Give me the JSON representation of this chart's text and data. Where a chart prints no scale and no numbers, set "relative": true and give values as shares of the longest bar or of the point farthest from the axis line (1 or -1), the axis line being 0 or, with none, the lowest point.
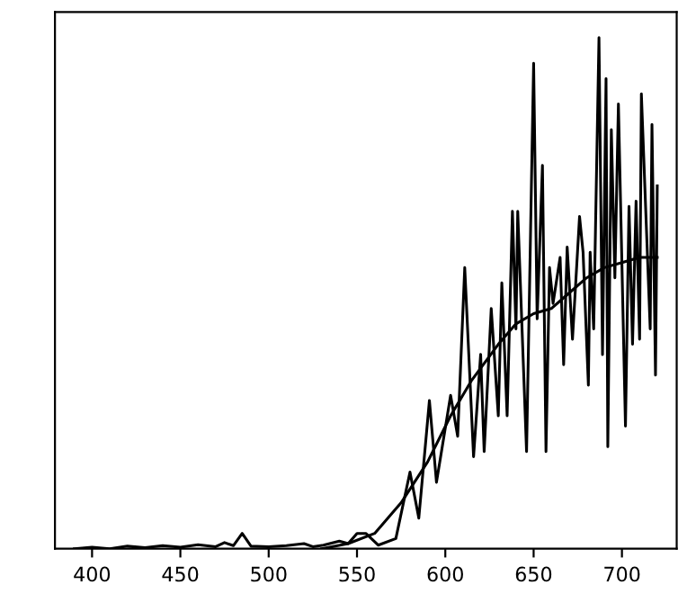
{
  "chart_data": {
    "type": "line",
    "relative": true,
    "xlim": [
      379,
      731
    ],
    "xticks": [
      400,
      450,
      500,
      550,
      600,
      650,
      700
    ],
    "grid": false,
    "series": [
      {
        "color": "#000000",
        "x": [
          390,
          400,
          410,
          420,
          430,
          440,
          450,
          460,
          470,
          475,
          480,
          485,
          490,
          500,
          510,
          520,
          525,
          531,
          540,
          545,
          550,
          555,
          562,
          572,
          580,
          585,
          591,
          595,
          603,
          607,
          611,
          616,
          620,
          622,
          626,
          630,
          632,
          635,
          638,
          640,
          641,
          646,
          650,
          652,
          655,
          657,
          659,
          661,
          665,
          667,
          669,
          672,
          676,
          678,
          681,
          682,
          684,
          687,
          689,
          691,
          692,
          694,
          696,
          698,
          702,
          704,
          706,
          708,
          710,
          711,
          716,
          717,
          719,
          720
        ],
        "values": [
          0,
          0.003,
          0,
          0.005,
          0.002,
          0.006,
          0.003,
          0.008,
          0.004,
          0.012,
          0.006,
          0.03,
          0.005,
          0.004,
          0.006,
          0.01,
          0.004,
          0.007,
          0.015,
          0.01,
          0.03,
          0.03,
          0.007,
          0.02,
          0.15,
          0.06,
          0.29,
          0.13,
          0.3,
          0.22,
          0.55,
          0.18,
          0.38,
          0.19,
          0.47,
          0.26,
          0.52,
          0.26,
          0.66,
          0.43,
          0.66,
          0.19,
          0.95,
          0.45,
          0.75,
          0.19,
          0.55,
          0.48,
          0.57,
          0.36,
          0.59,
          0.41,
          0.65,
          0.58,
          0.32,
          0.58,
          0.43,
          1.0,
          0.38,
          0.92,
          0.2,
          0.82,
          0.53,
          0.87,
          0.24,
          0.67,
          0.4,
          0.68,
          0.41,
          0.89,
          0.43,
          0.83,
          0.34,
          0.71
        ]
      },
      {
        "color": "#000000",
        "x": [
          530,
          545,
          560,
          575,
          590,
          603,
          615,
          630,
          640,
          650,
          660,
          670,
          680,
          690,
          700,
          710,
          720
        ],
        "values": [
          0,
          0.01,
          0.03,
          0.09,
          0.17,
          0.26,
          0.33,
          0.4,
          0.44,
          0.46,
          0.47,
          0.5,
          0.53,
          0.55,
          0.56,
          0.57,
          0.57
        ]
      }
    ]
  }
}
